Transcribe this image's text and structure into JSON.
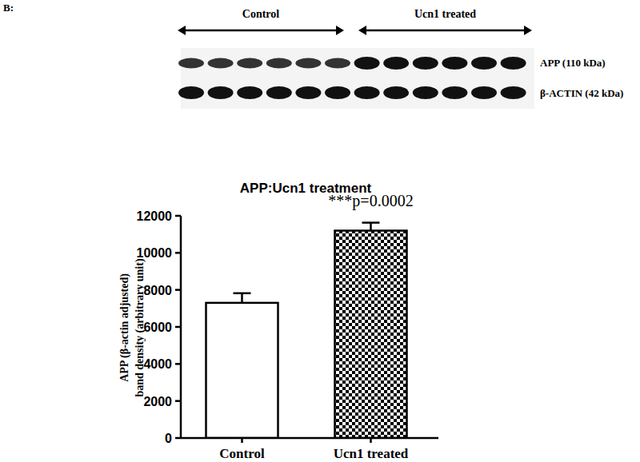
{
  "chart_data": {
    "type": "bar",
    "panel_label": "B:",
    "blot": {
      "groups": [
        "Control",
        "Ucn1 treated"
      ],
      "bands": [
        "APP (110 kDa)",
        "β-ACTIN (42 kDa)"
      ]
    },
    "title": "APP:Ucn1 treatment",
    "y_label": [
      "APP (β-actin adjusted)",
      "band density (arbitrary unit)"
    ],
    "categories": [
      "Control",
      "Ucn1 treated"
    ],
    "values": [
      7300,
      11200
    ],
    "errors": [
      520,
      430
    ],
    "colors": [
      "#ffffff",
      "#000000"
    ],
    "ylim": [
      0,
      12000
    ],
    "yticks": [
      0,
      2000,
      4000,
      6000,
      8000,
      10000,
      12000
    ],
    "grid": false,
    "annotations": [
      {
        "text": "***p=0.0002",
        "category": "Ucn1 treated"
      }
    ]
  }
}
